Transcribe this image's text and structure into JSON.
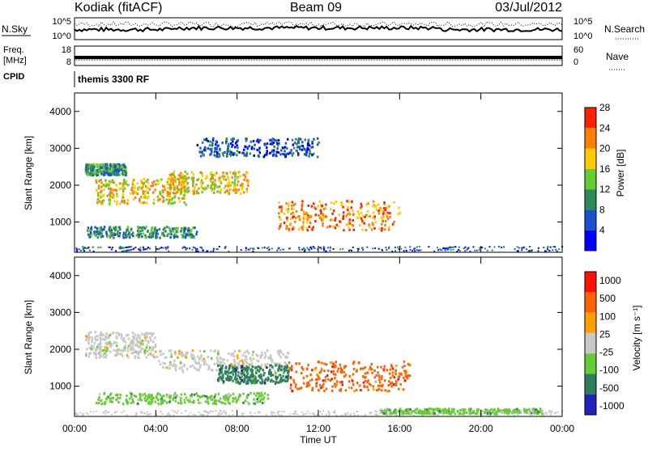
{
  "header": {
    "station": "Kodiak (fitACF)",
    "beam": "Beam 09",
    "date": "03/Jul/2012"
  },
  "panels": {
    "nsky_label": "N.Sky",
    "nsearch_label": "N.Search",
    "nsky_ticks": [
      "10^5",
      "10^0"
    ],
    "freq_label_1": "Freq.",
    "freq_label_2": "[MHz]",
    "freq_ticks": [
      "18",
      "8"
    ],
    "nave_label": "Nave",
    "nave_ticks": [
      "60",
      "0"
    ],
    "cpid_label": "CPID",
    "cpid_value": "themis 3300 RF"
  },
  "chart_data": [
    {
      "type": "heatmap",
      "name": "power",
      "ylabel": "Slant Range [km]",
      "ylim": [
        180,
        4500
      ],
      "yticks": [
        "1000",
        "2000",
        "3000",
        "4000"
      ],
      "colorbar_label": "Power [dB]",
      "colorbar_ticks": [
        "4",
        "8",
        "12",
        "16",
        "20",
        "24",
        "28"
      ],
      "colors": [
        "#0000ff",
        "#1a4fd0",
        "#2e8b57",
        "#66cc33",
        "#ffcc00",
        "#ff8000",
        "#ff2000"
      ],
      "bands": [
        {
          "t": [
            0.5,
            2.5
          ],
          "r": [
            2300,
            2600
          ],
          "level": 2
        },
        {
          "t": [
            1.0,
            5.5
          ],
          "r": [
            1500,
            2200
          ],
          "level": 4
        },
        {
          "t": [
            4.5,
            8.5
          ],
          "r": [
            1800,
            2400
          ],
          "level": 4
        },
        {
          "t": [
            10.0,
            16.0
          ],
          "r": [
            800,
            1600
          ],
          "level": 5
        },
        {
          "t": [
            0.5,
            6.0
          ],
          "r": [
            600,
            900
          ],
          "level": 2
        },
        {
          "t": [
            6.0,
            12.0
          ],
          "r": [
            2800,
            3300
          ],
          "level": 1
        }
      ]
    },
    {
      "type": "heatmap",
      "name": "velocity",
      "xlabel": "Time UT",
      "ylabel": "Slant Range [km]",
      "ylim": [
        180,
        4500
      ],
      "yticks": [
        "1000",
        "2000",
        "3000",
        "4000"
      ],
      "colorbar_label": "Velocity [m s⁻¹]",
      "colorbar_ticks": [
        "1000",
        "500",
        "100",
        "25",
        "-25",
        "-100",
        "-500",
        "-1000"
      ],
      "colors": [
        "#2222bb",
        "#2e7d5b",
        "#66cc33",
        "#c8c8c8",
        "#ffa000",
        "#ff6000",
        "#ff1000"
      ],
      "bands": [
        {
          "t": [
            0.5,
            4.0
          ],
          "r": [
            1800,
            2500
          ],
          "vel": 3
        },
        {
          "t": [
            4.0,
            10.5
          ],
          "r": [
            1400,
            2000
          ],
          "vel": 3
        },
        {
          "t": [
            7.0,
            10.5
          ],
          "r": [
            1100,
            1600
          ],
          "vel": 1
        },
        {
          "t": [
            10.5,
            16.5
          ],
          "r": [
            900,
            1700
          ],
          "vel": 5
        },
        {
          "t": [
            1.0,
            9.5
          ],
          "r": [
            550,
            850
          ],
          "vel": 2
        },
        {
          "t": [
            15.0,
            23.0
          ],
          "r": [
            280,
            420
          ],
          "vel": 2
        }
      ]
    }
  ],
  "xaxis": {
    "ticks": [
      "00:00",
      "04:00",
      "08:00",
      "12:00",
      "16:00",
      "20:00",
      "00:00"
    ],
    "xlim": [
      0,
      24
    ]
  }
}
